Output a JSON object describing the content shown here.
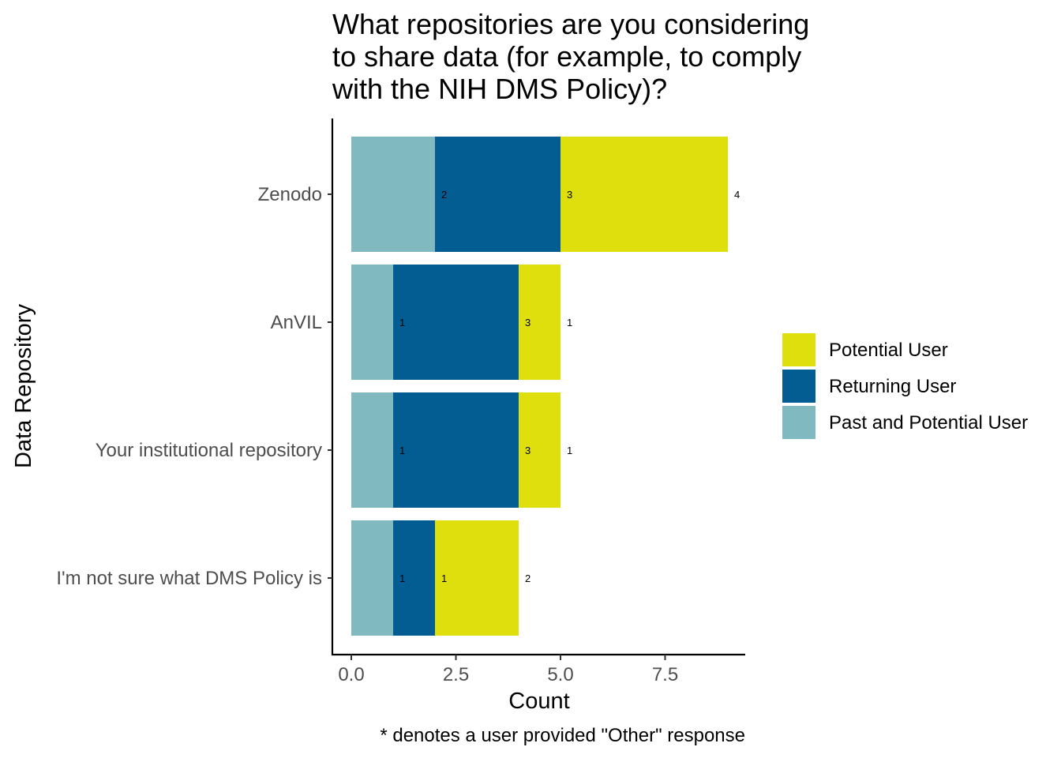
{
  "chart_data": {
    "type": "bar",
    "orientation": "horizontal",
    "stacked": true,
    "title_lines": [
      "What repositories are you considering",
      "to share data (for example, to comply",
      "with the NIH DMS Policy)?"
    ],
    "xlabel": "Count",
    "ylabel": "Data Repository",
    "caption": "* denotes a user provided \"Other\" response",
    "categories": [
      "Zenodo",
      "AnVIL",
      "Your institutional repository",
      "I'm not sure what DMS Policy is"
    ],
    "xlim": [
      0,
      9
    ],
    "x_ticks": [
      "0.0",
      "2.5",
      "5.0",
      "7.5"
    ],
    "x_tick_values": [
      0,
      2.5,
      5,
      7.5
    ],
    "legend_position": "right",
    "grid": false,
    "series": [
      {
        "name": "Past and Potential User",
        "color": "#80b9c0",
        "values": [
          2,
          1,
          1,
          1
        ]
      },
      {
        "name": "Returning User",
        "color": "#045d92",
        "values": [
          3,
          3,
          3,
          1
        ]
      },
      {
        "name": "Potential User",
        "color": "#dfdf0d",
        "values": [
          4,
          1,
          1,
          2
        ]
      }
    ],
    "legend_order": [
      "Potential User",
      "Returning User",
      "Past and Potential User"
    ]
  }
}
